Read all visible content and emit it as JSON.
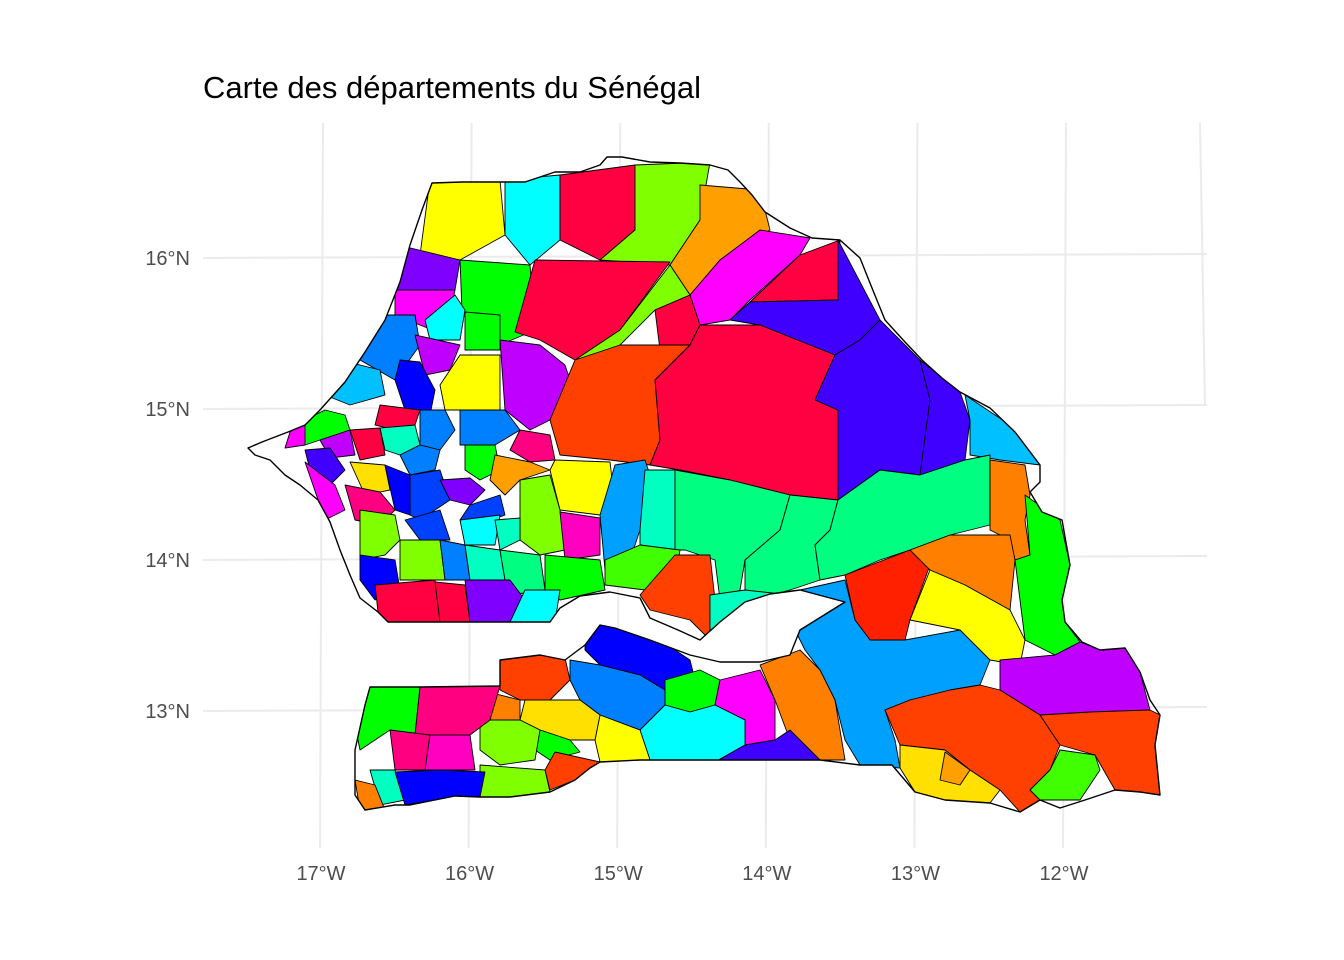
{
  "title": "Carte des départements du Sénégal",
  "axes": {
    "lon_ticks": [
      {
        "value": -17,
        "label": "17°W"
      },
      {
        "value": -16,
        "label": "16°W"
      },
      {
        "value": -15,
        "label": "15°W"
      },
      {
        "value": -14,
        "label": "14°W"
      },
      {
        "value": -13,
        "label": "13°W"
      },
      {
        "value": -12,
        "label": "12°W"
      }
    ],
    "lat_ticks": [
      {
        "value": 16,
        "label": "16°N"
      },
      {
        "value": 15,
        "label": "15°N"
      },
      {
        "value": 14,
        "label": "14°N"
      },
      {
        "value": 13,
        "label": "13°N"
      }
    ]
  },
  "palette": [
    "#ff0040",
    "#00ff80",
    "#ff4000",
    "#00c0ff",
    "#8000ff",
    "#ff00ff",
    "#00ff00",
    "#ffa000",
    "#0040ff",
    "#ffff00",
    "#00ffff",
    "#ff0080",
    "#80ff00",
    "#4000ff",
    "#0080ff",
    "#c000ff",
    "#00ffc0",
    "#ff8000",
    "#ffe000",
    "#0000ff",
    "#40ff00",
    "#ff2000",
    "#00a0ff",
    "#ff00c0"
  ]
}
